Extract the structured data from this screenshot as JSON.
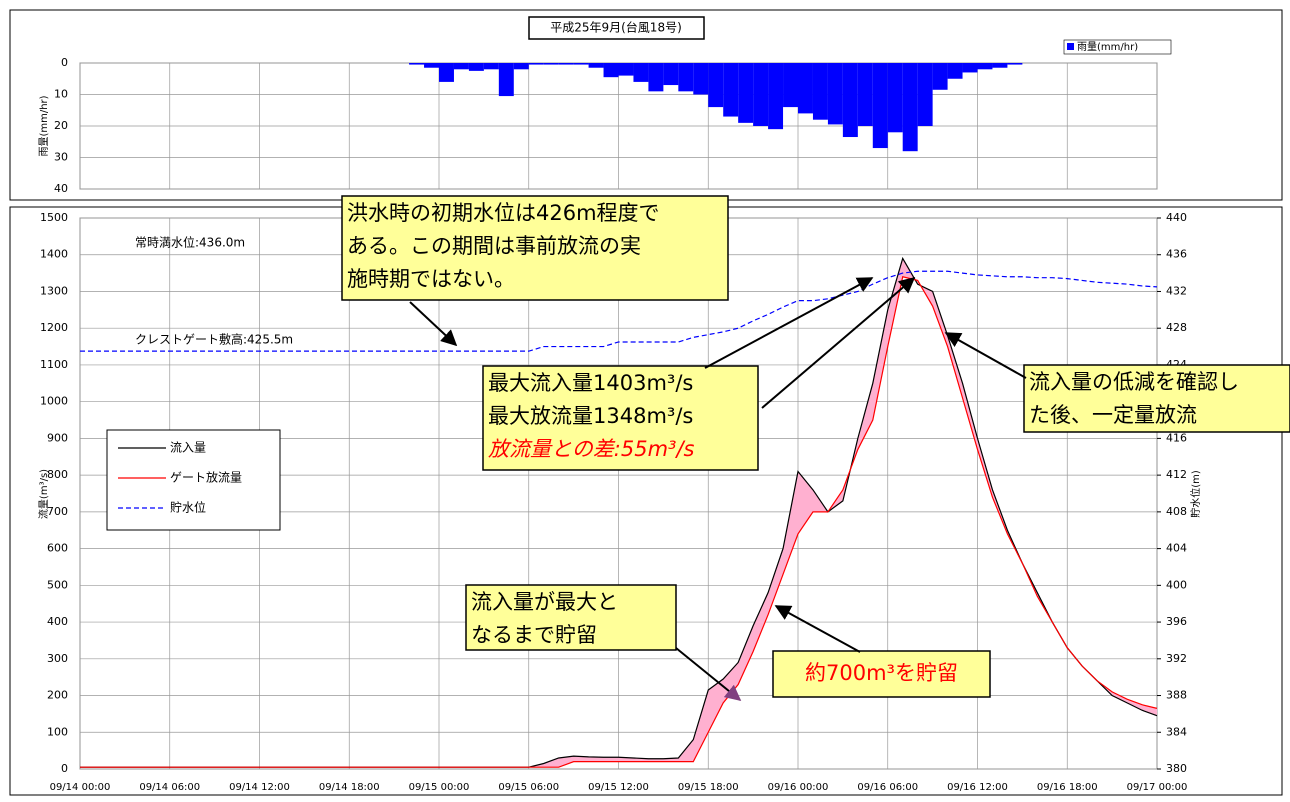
{
  "chart_data": [
    {
      "type": "bar",
      "title": "平成25年9月(台風18号)",
      "ylabel": "雨量(mm/hr)",
      "ylim": [
        0,
        40
      ],
      "y_inverted": true,
      "yticks": [
        0,
        10,
        20,
        30,
        40
      ],
      "xlim": [
        "09/14 00:00",
        "09/17 00:00"
      ],
      "grid": true,
      "series": [
        {
          "name": "雨量(mm/hr)",
          "color": "#0000ff",
          "x": [
            "09/14 22:00",
            "09/14 23:00",
            "09/15 00:00",
            "09/15 01:00",
            "09/15 02:00",
            "09/15 03:00",
            "09/15 04:00",
            "09/15 05:00",
            "09/15 06:00",
            "09/15 07:00",
            "09/15 08:00",
            "09/15 09:00",
            "09/15 10:00",
            "09/15 11:00",
            "09/15 12:00",
            "09/15 13:00",
            "09/15 14:00",
            "09/15 15:00",
            "09/15 16:00",
            "09/15 17:00",
            "09/15 18:00",
            "09/15 19:00",
            "09/15 20:00",
            "09/15 21:00",
            "09/15 22:00",
            "09/15 23:00",
            "09/16 00:00",
            "09/16 01:00",
            "09/16 02:00",
            "09/16 03:00",
            "09/16 04:00",
            "09/16 05:00",
            "09/16 06:00",
            "09/16 07:00",
            "09/16 08:00",
            "09/16 09:00",
            "09/16 10:00",
            "09/16 11:00",
            "09/16 12:00",
            "09/16 13:00",
            "09/16 14:00"
          ],
          "values": [
            0.5,
            1.5,
            6,
            2,
            2.5,
            2,
            10.5,
            2,
            0.5,
            0.5,
            0.5,
            0.5,
            1.5,
            4.5,
            4,
            6,
            9,
            7,
            9,
            10,
            14,
            17,
            19,
            20,
            21,
            14,
            16,
            18,
            19.5,
            23.5,
            20,
            27,
            22,
            28,
            20,
            8.5,
            5,
            3,
            2,
            1.5,
            0.5
          ]
        }
      ]
    },
    {
      "type": "line",
      "ylabel": "流量(m³/s)",
      "y2label": "貯水位(m)",
      "ylim": [
        0,
        1500
      ],
      "yticks": [
        0,
        100,
        200,
        300,
        400,
        500,
        600,
        700,
        800,
        900,
        1000,
        1100,
        1200,
        1300,
        1400,
        1500
      ],
      "y2lim": [
        380,
        440
      ],
      "y2ticks": [
        380,
        384,
        388,
        392,
        396,
        400,
        404,
        408,
        412,
        416,
        420,
        424,
        428,
        432,
        436,
        440
      ],
      "xlim": [
        "09/14 00:00",
        "09/17 00:00"
      ],
      "xticks": [
        "09/14 00:00",
        "09/14 06:00",
        "09/14 12:00",
        "09/14 18:00",
        "09/15 00:00",
        "09/15 06:00",
        "09/15 12:00",
        "09/15 18:00",
        "09/16 00:00",
        "09/16 06:00",
        "09/16 12:00",
        "09/16 18:00",
        "09/17 00:00"
      ],
      "grid": true,
      "x": [
        "09/14 00:00",
        "09/14 01:00",
        "09/14 02:00",
        "09/14 03:00",
        "09/14 04:00",
        "09/14 05:00",
        "09/14 06:00",
        "09/14 07:00",
        "09/14 08:00",
        "09/14 09:00",
        "09/14 10:00",
        "09/14 11:00",
        "09/14 12:00",
        "09/14 13:00",
        "09/14 14:00",
        "09/14 15:00",
        "09/14 16:00",
        "09/14 17:00",
        "09/14 18:00",
        "09/14 19:00",
        "09/14 20:00",
        "09/14 21:00",
        "09/14 22:00",
        "09/14 23:00",
        "09/15 00:00",
        "09/15 01:00",
        "09/15 02:00",
        "09/15 03:00",
        "09/15 04:00",
        "09/15 05:00",
        "09/15 06:00",
        "09/15 07:00",
        "09/15 08:00",
        "09/15 09:00",
        "09/15 10:00",
        "09/15 11:00",
        "09/15 12:00",
        "09/15 13:00",
        "09/15 14:00",
        "09/15 15:00",
        "09/15 16:00",
        "09/15 17:00",
        "09/15 18:00",
        "09/15 19:00",
        "09/15 20:00",
        "09/15 21:00",
        "09/15 22:00",
        "09/15 23:00",
        "09/16 00:00",
        "09/16 01:00",
        "09/16 02:00",
        "09/16 03:00",
        "09/16 04:00",
        "09/16 05:00",
        "09/16 06:00",
        "09/16 07:00",
        "09/16 08:00",
        "09/16 09:00",
        "09/16 10:00",
        "09/16 11:00",
        "09/16 12:00",
        "09/16 13:00",
        "09/16 14:00",
        "09/16 15:00",
        "09/16 16:00",
        "09/16 17:00",
        "09/16 18:00",
        "09/16 19:00",
        "09/16 20:00",
        "09/16 21:00",
        "09/16 22:00",
        "09/16 23:00",
        "09/17 00:00"
      ],
      "series": [
        {
          "name": "流入量",
          "color": "#000000",
          "linestyle": "solid",
          "values": [
            5,
            5,
            5,
            5,
            5,
            5,
            5,
            5,
            5,
            5,
            5,
            5,
            5,
            5,
            5,
            5,
            5,
            5,
            5,
            5,
            5,
            5,
            5,
            5,
            5,
            5,
            5,
            5,
            5,
            5,
            5,
            15,
            30,
            35,
            33,
            32,
            32,
            30,
            28,
            28,
            30,
            80,
            215,
            245,
            290,
            390,
            480,
            600,
            810,
            760,
            700,
            730,
            900,
            1050,
            1250,
            1390,
            1320,
            1300,
            1180,
            1050,
            900,
            760,
            650,
            560,
            480,
            400,
            330,
            280,
            240,
            200,
            180,
            160,
            145
          ]
        },
        {
          "name": "ゲート放流量",
          "color": "#ff0000",
          "linestyle": "solid",
          "values": [
            5,
            5,
            5,
            5,
            5,
            5,
            5,
            5,
            5,
            5,
            5,
            5,
            5,
            5,
            5,
            5,
            5,
            5,
            5,
            5,
            5,
            5,
            5,
            5,
            5,
            5,
            5,
            5,
            5,
            5,
            5,
            5,
            5,
            20,
            20,
            20,
            20,
            20,
            20,
            20,
            20,
            20,
            100,
            180,
            230,
            320,
            420,
            530,
            640,
            700,
            700,
            760,
            870,
            950,
            1150,
            1340,
            1330,
            1260,
            1150,
            1010,
            870,
            740,
            640,
            560,
            470,
            400,
            330,
            280,
            240,
            210,
            190,
            175,
            165
          ]
        },
        {
          "name": "貯水位",
          "color": "#0000ff",
          "linestyle": "dashed",
          "axis": "y2",
          "values": [
            425.5,
            425.5,
            425.5,
            425.5,
            425.5,
            425.5,
            425.5,
            425.5,
            425.5,
            425.5,
            425.5,
            425.5,
            425.5,
            425.5,
            425.5,
            425.5,
            425.5,
            425.5,
            425.5,
            425.5,
            425.5,
            425.5,
            425.5,
            425.5,
            425.5,
            425.5,
            425.5,
            425.5,
            425.5,
            425.5,
            425.5,
            426,
            426,
            426,
            426,
            426,
            426.5,
            426.5,
            426.5,
            426.5,
            426.5,
            427,
            427.3,
            427.6,
            428,
            428.8,
            429.5,
            430.3,
            431,
            431,
            431.2,
            431.6,
            432,
            432.8,
            433.5,
            434,
            434.2,
            434.2,
            434.2,
            434,
            433.8,
            433.7,
            433.6,
            433.6,
            433.5,
            433.5,
            433.4,
            433.2,
            433,
            432.9,
            432.8,
            432.6,
            432.5
          ]
        }
      ],
      "fill_color": "#ffb0d0",
      "labels": [
        "常時満水位:436.0m",
        "クレストゲート敷高:425.5m"
      ],
      "annotations": [
        {
          "lines": [
            "洪水時の初期水位は426m程度で",
            "ある。この期間は事前放流の実",
            "施時期ではない。"
          ]
        },
        {
          "lines": [
            "最大流入量1403m³/s",
            "最大放流量1348m³/s",
            "放流量との差:55m³/s"
          ]
        },
        {
          "lines": [
            "流入量の低減を確認し",
            "た後、一定量放流"
          ]
        },
        {
          "lines": [
            "流入量が最大と",
            "なるまで貯留"
          ]
        },
        {
          "lines": [
            "約700m³を貯留"
          ]
        }
      ]
    }
  ]
}
